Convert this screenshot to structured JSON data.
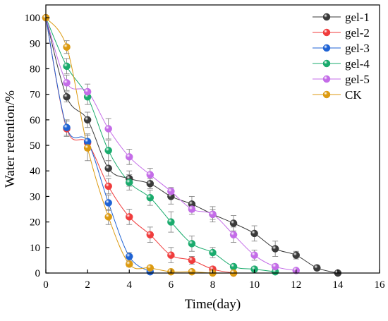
{
  "chart_data": {
    "type": "line",
    "xlabel": "Time(day)",
    "ylabel": "Water retention/%",
    "xlim": [
      0,
      16
    ],
    "ylim": [
      0,
      105
    ],
    "xticks": [
      0,
      2,
      4,
      6,
      8,
      10,
      12,
      14,
      16
    ],
    "yticks": [
      0,
      10,
      20,
      30,
      40,
      50,
      60,
      70,
      80,
      90,
      100
    ],
    "grid": false,
    "legend_position": "top-right",
    "series": [
      {
        "name": "gel-1",
        "color": "#3a3a3a",
        "x": [
          0,
          1,
          2,
          3,
          4,
          5,
          6,
          7,
          8,
          9,
          10,
          11,
          12,
          13,
          14
        ],
        "y": [
          100,
          69,
          60,
          41,
          37,
          35,
          30,
          27,
          23,
          19.5,
          15.5,
          9.5,
          7,
          2,
          0
        ],
        "err": [
          0,
          2,
          3,
          3,
          3,
          2,
          3,
          3,
          3,
          3,
          3,
          3,
          1.5,
          1,
          0
        ]
      },
      {
        "name": "gel-2",
        "color": "#f03c3c",
        "x": [
          0,
          1,
          2,
          3,
          4,
          5,
          6,
          7,
          8,
          9
        ],
        "y": [
          100,
          56.5,
          51,
          34,
          22,
          15,
          7,
          5,
          1.5,
          0
        ],
        "err": [
          0,
          3,
          3,
          3,
          3,
          3,
          3,
          1.5,
          1,
          0
        ]
      },
      {
        "name": "gel-3",
        "color": "#1f63d4",
        "x": [
          0,
          1,
          2,
          3,
          4,
          5
        ],
        "y": [
          100,
          57,
          51.5,
          27.5,
          6.5,
          0.5
        ],
        "err": [
          0,
          3,
          3,
          3,
          1.5,
          0.5
        ]
      },
      {
        "name": "gel-4",
        "color": "#1aab6d",
        "x": [
          0,
          1,
          2,
          3,
          4,
          5,
          6,
          7,
          8,
          9,
          10,
          11
        ],
        "y": [
          100,
          81,
          69,
          48,
          35.5,
          29.5,
          20,
          11.5,
          8,
          2.5,
          1.5,
          0.5
        ],
        "err": [
          0,
          3,
          3,
          4,
          3,
          3,
          4,
          3,
          2,
          1,
          1,
          0.5
        ]
      },
      {
        "name": "gel-5",
        "color": "#c46ce8",
        "x": [
          0,
          1,
          2,
          3,
          4,
          5,
          6,
          7,
          8,
          9,
          10,
          11,
          12
        ],
        "y": [
          100,
          74.5,
          71,
          56.5,
          45.5,
          38.5,
          32,
          25,
          23,
          15,
          7,
          2.5,
          1
        ],
        "err": [
          0,
          3,
          3,
          4,
          3,
          2.5,
          1.5,
          2,
          2,
          3,
          2,
          1,
          0.5
        ]
      },
      {
        "name": "CK",
        "color": "#dc9a10",
        "x": [
          0,
          1,
          2,
          3,
          4,
          5,
          6,
          7,
          8,
          9
        ],
        "y": [
          100,
          88.5,
          49,
          22,
          3.5,
          2,
          0.5,
          0.5,
          0,
          0
        ],
        "err": [
          0,
          2.5,
          5,
          3,
          1,
          0.5,
          0,
          0,
          0,
          0
        ]
      }
    ]
  }
}
